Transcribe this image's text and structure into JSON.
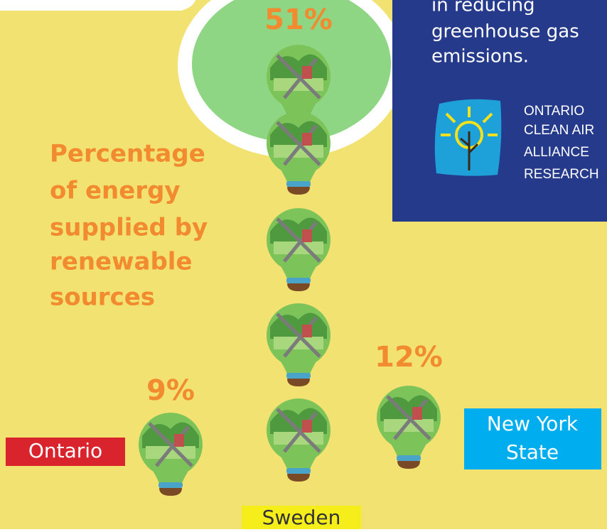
{
  "panel": {
    "lines": [
      "in reducing",
      "greenhouse gas",
      "emissions."
    ]
  },
  "logo": {
    "lines": [
      "ONTARIO",
      "CLEAN AIR",
      "ALLIANCE",
      "RESEARCH"
    ]
  },
  "title": [
    "Percentage",
    "of energy",
    "supplied by",
    "renewable",
    "sources"
  ],
  "regions": [
    {
      "name": "Ontario",
      "percent": "9%"
    },
    {
      "name": "Sweden",
      "percent": "51%"
    },
    {
      "name": [
        "New York",
        "State"
      ],
      "percent": "12%"
    }
  ]
}
